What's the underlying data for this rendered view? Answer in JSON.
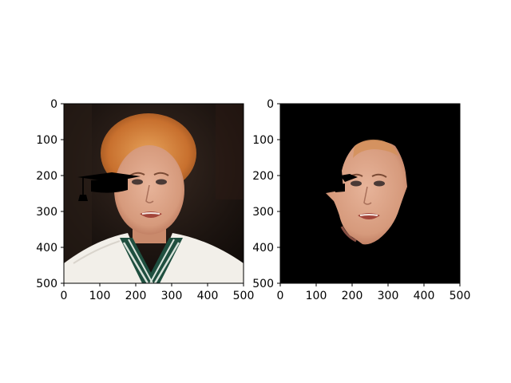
{
  "figure": {
    "panels": [
      {
        "content": "original photo of a woman with red-blonde hair in a white jacket and striped lanyard, with a black graduation cap drawn near her left ear",
        "xlim": [
          0,
          500
        ],
        "ylim": [
          500,
          0
        ]
      },
      {
        "content": "segmented face region on a black background, with a partial black graduation cap visible at the left edge of the face",
        "xlim": [
          0,
          500
        ],
        "ylim": [
          500,
          0
        ]
      }
    ]
  },
  "chart_data": [
    {
      "type": "image",
      "title": "",
      "xlabel": "",
      "ylabel": "",
      "xlim": [
        0,
        500
      ],
      "ylim": [
        500,
        0
      ],
      "xticks": [
        0,
        100,
        200,
        300,
        400,
        500
      ],
      "yticks": [
        0,
        100,
        200,
        300,
        400,
        500
      ],
      "xtick_labels": [
        "0",
        "100",
        "200",
        "300",
        "400",
        "500"
      ],
      "ytick_labels": [
        "0",
        "100",
        "200",
        "300",
        "400",
        "500"
      ],
      "grid": false
    },
    {
      "type": "image",
      "title": "",
      "xlabel": "",
      "ylabel": "",
      "xlim": [
        0,
        500
      ],
      "ylim": [
        500,
        0
      ],
      "xticks": [
        0,
        100,
        200,
        300,
        400,
        500
      ],
      "yticks": [
        0,
        100,
        200,
        300,
        400,
        500
      ],
      "xtick_labels": [
        "0",
        "100",
        "200",
        "300",
        "400",
        "500"
      ],
      "ytick_labels": [
        "0",
        "100",
        "200",
        "300",
        "400",
        "500"
      ],
      "grid": false
    }
  ]
}
